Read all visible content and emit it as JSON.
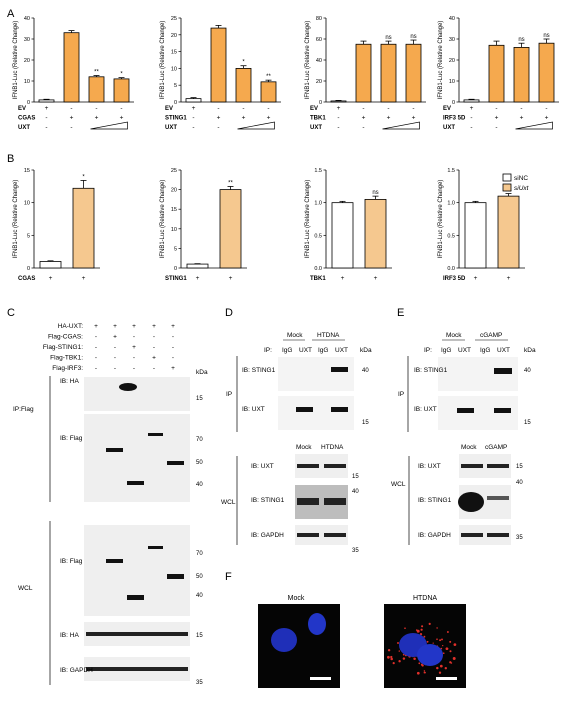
{
  "panel_letters": [
    "A",
    "B",
    "C",
    "D",
    "E",
    "F"
  ],
  "colors": {
    "orange": "#F5A94E",
    "lightorange": "#F5C88F",
    "blot_bg": "#ECECEC",
    "band": "#111111"
  },
  "chart_common": {
    "ylabel": "IFNB1-Luc (Relative Change)",
    "ylabel_b": "IFNB1-Luc (Relative Change)"
  },
  "chart_data": [
    {
      "panel": "A",
      "type": "bar",
      "ylim": [
        0,
        40
      ],
      "yticks": [
        0,
        10,
        20,
        30,
        40
      ],
      "values": [
        1,
        33,
        12,
        11
      ],
      "errors": [
        0.3,
        1,
        0.6,
        0.6
      ],
      "sig": [
        "",
        "",
        "**",
        "*"
      ],
      "rows": [
        {
          "label": "EV",
          "marks": [
            "+",
            "-",
            "-",
            "-"
          ]
        },
        {
          "label": "CGAS",
          "marks": [
            "-",
            "+",
            "+",
            "+"
          ]
        },
        {
          "label": "UXT",
          "marks": [
            "-",
            "-",
            "ramp",
            "ramp"
          ]
        }
      ]
    },
    {
      "panel": "A",
      "type": "bar",
      "ylim": [
        0,
        25
      ],
      "yticks": [
        0,
        5,
        10,
        15,
        20,
        25
      ],
      "values": [
        1,
        22,
        10,
        6
      ],
      "errors": [
        0.3,
        0.8,
        0.8,
        0.5
      ],
      "sig": [
        "",
        "",
        "*",
        "**"
      ],
      "rows": [
        {
          "label": "EV",
          "marks": [
            "+",
            "-",
            "-",
            "-"
          ]
        },
        {
          "label": "STING1",
          "marks": [
            "-",
            "+",
            "+",
            "+"
          ]
        },
        {
          "label": "UXT",
          "marks": [
            "-",
            "-",
            "ramp",
            "ramp"
          ]
        }
      ]
    },
    {
      "panel": "A",
      "type": "bar",
      "ylim": [
        0,
        80
      ],
      "yticks": [
        0,
        20,
        40,
        60,
        80
      ],
      "values": [
        1,
        55,
        55,
        55
      ],
      "errors": [
        0.5,
        3,
        3,
        4
      ],
      "sig": [
        "",
        "",
        "ns",
        "ns"
      ],
      "rows": [
        {
          "label": "EV",
          "marks": [
            "+",
            "-",
            "-",
            "-"
          ]
        },
        {
          "label": "TBK1",
          "marks": [
            "-",
            "+",
            "+",
            "+"
          ]
        },
        {
          "label": "UXT",
          "marks": [
            "-",
            "-",
            "ramp",
            "ramp"
          ]
        }
      ]
    },
    {
      "panel": "A",
      "type": "bar",
      "ylim": [
        0,
        40
      ],
      "yticks": [
        0,
        10,
        20,
        30,
        40
      ],
      "values": [
        1,
        27,
        26,
        28
      ],
      "errors": [
        0.3,
        2,
        2,
        2
      ],
      "sig": [
        "",
        "",
        "ns",
        "ns"
      ],
      "rows": [
        {
          "label": "EV",
          "marks": [
            "+",
            "-",
            "-",
            "-"
          ]
        },
        {
          "label": "IRF3 5D",
          "marks": [
            "-",
            "+",
            "+",
            "+"
          ]
        },
        {
          "label": "UXT",
          "marks": [
            "-",
            "-",
            "ramp",
            "ramp"
          ]
        }
      ]
    },
    {
      "panel": "B",
      "type": "bar",
      "ylim": [
        0,
        15
      ],
      "yticks": [
        0,
        5,
        10,
        15
      ],
      "categories": [
        "siNC",
        "siUxt"
      ],
      "values": [
        1,
        12.2
      ],
      "errors": [
        0.1,
        1.2
      ],
      "sig": [
        "",
        "*"
      ],
      "rows": [
        {
          "label": "CGAS",
          "marks": [
            "+",
            "+"
          ]
        }
      ]
    },
    {
      "panel": "B",
      "type": "bar",
      "ylim": [
        0,
        25
      ],
      "yticks": [
        0,
        5,
        10,
        15,
        20,
        25
      ],
      "categories": [
        "siNC",
        "siUxt"
      ],
      "values": [
        1,
        20
      ],
      "errors": [
        0.1,
        0.8
      ],
      "sig": [
        "",
        "**"
      ],
      "rows": [
        {
          "label": "STING1",
          "marks": [
            "+",
            "+"
          ]
        }
      ]
    },
    {
      "panel": "B",
      "type": "bar",
      "ylim": [
        0,
        1.5
      ],
      "yticks": [
        0,
        0.5,
        1.0,
        1.5
      ],
      "categories": [
        "siNC",
        "siUxt"
      ],
      "values": [
        1.0,
        1.05
      ],
      "errors": [
        0.02,
        0.05
      ],
      "sig": [
        "",
        "ns"
      ],
      "rows": [
        {
          "label": "TBK1",
          "marks": [
            "+",
            "+"
          ]
        }
      ]
    },
    {
      "panel": "B",
      "type": "bar",
      "ylim": [
        0,
        1.5
      ],
      "yticks": [
        0,
        0.5,
        1.0,
        1.5
      ],
      "categories": [
        "siNC",
        "siUxt"
      ],
      "values": [
        1.0,
        1.1
      ],
      "errors": [
        0.02,
        0.04
      ],
      "sig": [
        "",
        "ns"
      ],
      "rows": [
        {
          "label": "IRF3 5D",
          "marks": [
            "+",
            "+"
          ]
        }
      ]
    }
  ],
  "legend_b": {
    "siNC": "siNC",
    "siUxt": "siUxt"
  },
  "ytick_labels": {
    "c0": [
      "0",
      "10",
      "20",
      "30",
      "40"
    ],
    "c1": [
      "0",
      "5",
      "10",
      "15",
      "20",
      "25"
    ],
    "c2": [
      "0",
      "20",
      "40",
      "60",
      "80"
    ],
    "c3": [
      "0",
      "10",
      "20",
      "30",
      "40"
    ],
    "c4": [
      "0",
      "5",
      "10",
      "15"
    ],
    "c5": [
      "0",
      "5",
      "10",
      "15",
      "20",
      "25"
    ],
    "c6": [
      "0.0",
      "0.5",
      "1.0",
      "1.5"
    ],
    "c7": [
      "0.0",
      "0.5",
      "1.0",
      "1.5"
    ]
  },
  "panel_c": {
    "rows": [
      {
        "label": "HA-UXT:",
        "marks": [
          "+",
          "+",
          "+",
          "+",
          "+"
        ]
      },
      {
        "label": "Flag-CGAS:",
        "marks": [
          "-",
          "+",
          "-",
          "-",
          "-"
        ]
      },
      {
        "label": "Flag-STING1:",
        "marks": [
          "-",
          "-",
          "+",
          "-",
          "-"
        ]
      },
      {
        "label": "Flag-TBK1:",
        "marks": [
          "-",
          "-",
          "-",
          "+",
          "-"
        ]
      },
      {
        "label": "Flag-IRF3:",
        "marks": [
          "-",
          "-",
          "-",
          "-",
          "+"
        ]
      }
    ],
    "kda": "kDa",
    "ip_label": "IP:Flag",
    "wcl_label": "WCL",
    "blots": [
      {
        "ib": "IB: HA",
        "markers": [
          "15"
        ]
      },
      {
        "ib": "IB: Flag",
        "markers": [
          "70",
          "50",
          "40"
        ]
      },
      {
        "ib": "IB: Flag",
        "markers": [
          "70",
          "50",
          "40"
        ]
      },
      {
        "ib": "IB: HA",
        "markers": [
          "15"
        ]
      },
      {
        "ib": "IB: GAPDH",
        "markers": [
          "35"
        ]
      }
    ]
  },
  "panel_d": {
    "treat": [
      "Mock",
      "HTDNA"
    ],
    "ip_text": "IP:",
    "ip_cols": [
      "IgG",
      "UXT",
      "IgG",
      "UXT"
    ],
    "kda": "kDa",
    "ip_label": "IP",
    "wcl_label": "WCL",
    "wcl_treat": [
      "Mock",
      "HTDNA"
    ],
    "blots": [
      {
        "ib": "IB: STING1",
        "markers": [
          "40"
        ]
      },
      {
        "ib": "IB: UXT",
        "markers": [
          "15"
        ]
      },
      {
        "ib": "IB: UXT",
        "markers": [
          "15"
        ]
      },
      {
        "ib": "IB: STING1",
        "markers": [
          "40"
        ]
      },
      {
        "ib": "IB: GAPDH",
        "markers": [
          "35"
        ]
      }
    ]
  },
  "panel_e": {
    "treat": [
      "Mock",
      "cGAMP"
    ],
    "ip_text": "IP:",
    "ip_cols": [
      "IgG",
      "UXT",
      "IgG",
      "UXT"
    ],
    "kda": "kDa",
    "ip_label": "IP",
    "wcl_label": "WCL",
    "wcl_treat": [
      "Mock",
      "cGAMP"
    ],
    "blots": [
      {
        "ib": "IB: STING1",
        "markers": [
          "40"
        ]
      },
      {
        "ib": "IB: UXT",
        "markers": [
          "15"
        ]
      },
      {
        "ib": "IB: UXT",
        "markers": [
          "15"
        ]
      },
      {
        "ib": "IB: STING1",
        "markers": [
          "40"
        ]
      },
      {
        "ib": "IB: GAPDH",
        "markers": [
          "35"
        ]
      }
    ]
  },
  "panel_f": {
    "labels": [
      "Mock",
      "HTDNA"
    ]
  }
}
